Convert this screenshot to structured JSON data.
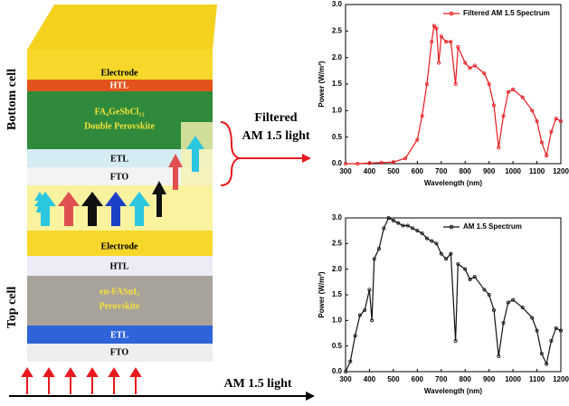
{
  "diagram": {
    "bottom_cell": "Bottom cell",
    "top_cell": "Top cell",
    "bottom_layers": [
      "Electrode",
      "HTL",
      "FA₄GeSbCl₁₂",
      "Double Perovskite",
      "ETL",
      "FTO"
    ],
    "top_layers": [
      "Electrode",
      "HTL",
      "en-FASnI₃",
      "Perovskite",
      "ETL",
      "FTO"
    ],
    "filtered_light": [
      "Filtered",
      "AM 1.5 light"
    ],
    "incident_light": "AM 1.5 light"
  },
  "chart_data": [
    {
      "type": "line",
      "legend": "upper right",
      "x": [
        300,
        350,
        400,
        450,
        500,
        550,
        600,
        620,
        640,
        660,
        670,
        680,
        690,
        700,
        720,
        740,
        760,
        770,
        800,
        820,
        840,
        880,
        900,
        920,
        940,
        960,
        980,
        1000,
        1040,
        1080,
        1100,
        1120,
        1140,
        1160,
        1180,
        1200
      ],
      "series": [
        {
          "name": "Filtered AM 1.5 Spectrum",
          "color": "#e8191d",
          "values": [
            0,
            0,
            0.01,
            0.02,
            0.03,
            0.1,
            0.45,
            0.9,
            1.5,
            2.3,
            2.6,
            2.55,
            1.9,
            2.4,
            2.3,
            2.3,
            1.5,
            2.2,
            1.9,
            1.8,
            1.85,
            1.7,
            1.5,
            1.1,
            0.3,
            0.9,
            1.35,
            1.4,
            1.25,
            1.0,
            0.8,
            0.4,
            0.15,
            0.6,
            0.85,
            0.8
          ]
        }
      ],
      "xlabel": "Wavelength (nm)",
      "ylabel": "Power (W/m²)",
      "xlim": [
        300,
        1200
      ],
      "ylim": [
        0,
        3
      ],
      "xticks": [
        300,
        400,
        500,
        600,
        700,
        800,
        900,
        1000,
        1100,
        1200
      ],
      "yticks": [
        {
          "value": 0,
          "label": "0.0"
        },
        {
          "value": 0.5,
          "label": "0.5"
        },
        {
          "value": 1,
          "label": "1.0"
        },
        {
          "value": 1.5,
          "label": "1.5"
        },
        {
          "value": 2,
          "label": "2.0"
        },
        {
          "value": 2.5,
          "label": "2.5"
        },
        {
          "value": 3,
          "label": "3.0"
        }
      ]
    },
    {
      "type": "line",
      "legend": "upper right",
      "x": [
        300,
        320,
        340,
        360,
        380,
        400,
        410,
        420,
        440,
        460,
        480,
        500,
        520,
        540,
        560,
        580,
        600,
        620,
        640,
        660,
        680,
        700,
        720,
        740,
        760,
        770,
        800,
        820,
        840,
        880,
        900,
        920,
        940,
        960,
        980,
        1000,
        1040,
        1080,
        1100,
        1120,
        1140,
        1160,
        1180,
        1200
      ],
      "series": [
        {
          "name": "AM 1.5 Spectrum",
          "color": "#111111",
          "values": [
            0,
            0.2,
            0.7,
            1.1,
            1.2,
            1.6,
            1.0,
            2.2,
            2.4,
            2.8,
            3.0,
            2.95,
            2.9,
            2.85,
            2.85,
            2.8,
            2.75,
            2.7,
            2.6,
            2.55,
            2.5,
            2.3,
            2.2,
            2.3,
            0.6,
            2.1,
            2.0,
            1.8,
            1.85,
            1.6,
            1.5,
            1.2,
            0.3,
            0.95,
            1.35,
            1.4,
            1.25,
            1.05,
            0.8,
            0.35,
            0.15,
            0.6,
            0.85,
            0.8
          ]
        }
      ],
      "xlabel": "Wavelength (nm)",
      "ylabel": "Power (W/m²)",
      "xlim": [
        300,
        1200
      ],
      "ylim": [
        0,
        3
      ],
      "xticks": [
        300,
        400,
        500,
        600,
        700,
        800,
        900,
        1000,
        1100,
        1200
      ],
      "yticks": [
        {
          "value": 0,
          "label": "0.0"
        },
        {
          "value": 0.5,
          "label": "0.5"
        },
        {
          "value": 1,
          "label": "1.0"
        },
        {
          "value": 1.5,
          "label": "1.5"
        },
        {
          "value": 2,
          "label": "2.0"
        },
        {
          "value": 2.5,
          "label": "2.5"
        },
        {
          "value": 3,
          "label": "3.0"
        }
      ]
    }
  ]
}
